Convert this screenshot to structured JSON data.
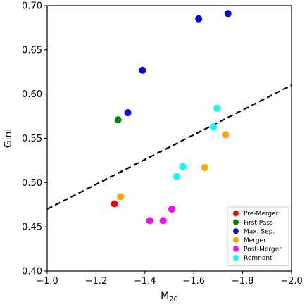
{
  "chart_data": {
    "type": "scatter",
    "title": "",
    "xlabel": "M",
    "xlabel_sub": "20",
    "ylabel": "Gini",
    "xlim": [
      -1.0,
      -2.0
    ],
    "ylim": [
      0.4,
      0.7
    ],
    "x_ticks": [
      -1.0,
      -1.2,
      -1.4,
      -1.6,
      -1.8,
      -2.0
    ],
    "x_tick_labels": [
      "−1.0",
      "−1.2",
      "−1.4",
      "−1.6",
      "−1.8",
      "−2.0"
    ],
    "y_ticks": [
      0.4,
      0.45,
      0.5,
      0.55,
      0.6,
      0.65,
      0.7
    ],
    "y_tick_labels": [
      "0.40",
      "0.45",
      "0.50",
      "0.55",
      "0.60",
      "0.65",
      "0.70"
    ],
    "grid": false,
    "legend_position": "lower-right",
    "series": [
      {
        "name": "Pre-Merger",
        "color": "#ff0000",
        "points": [
          [
            -1.275,
            0.476
          ]
        ]
      },
      {
        "name": "First Pass",
        "color": "#008000",
        "points": [
          [
            -1.29,
            0.571
          ]
        ]
      },
      {
        "name": "Max. Sep.",
        "color": "#0000ff",
        "points": [
          [
            -1.33,
            0.579
          ],
          [
            -1.39,
            0.627
          ],
          [
            -1.62,
            0.685
          ],
          [
            -1.74,
            0.691
          ]
        ]
      },
      {
        "name": "Merger",
        "color": "#ffa500",
        "points": [
          [
            -1.3,
            0.484
          ],
          [
            -1.645,
            0.517
          ],
          [
            -1.73,
            0.554
          ]
        ]
      },
      {
        "name": "Post-Merger",
        "color": "#ff00ff",
        "points": [
          [
            -1.42,
            0.457
          ],
          [
            -1.475,
            0.457
          ],
          [
            -1.51,
            0.47
          ]
        ]
      },
      {
        "name": "Remnant",
        "color": "#00ffff",
        "points": [
          [
            -1.53,
            0.507
          ],
          [
            -1.555,
            0.518
          ],
          [
            -1.68,
            0.563
          ],
          [
            -1.695,
            0.584
          ]
        ]
      }
    ],
    "reference_line": {
      "style": "dashed",
      "color": "#000000",
      "x": [
        -1.0,
        -2.0
      ],
      "y": [
        0.47,
        0.61
      ]
    }
  }
}
